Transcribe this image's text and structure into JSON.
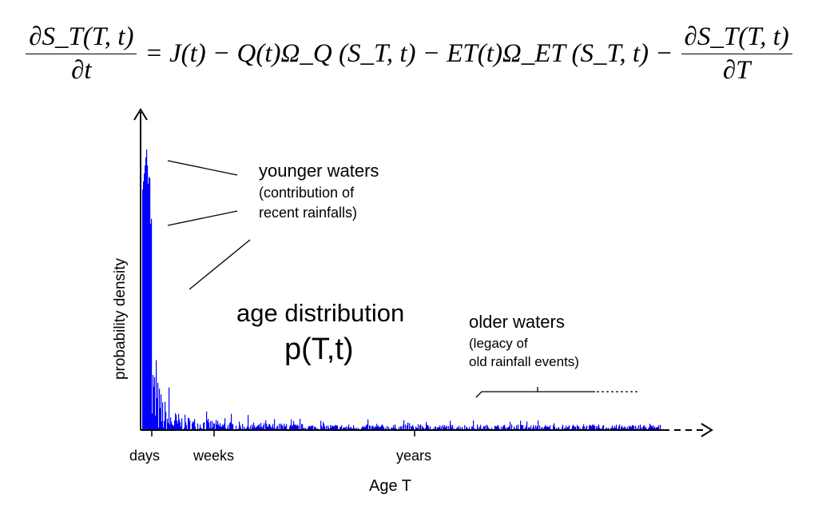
{
  "equation": {
    "lhs_numerator": "∂S_T(T, t)",
    "lhs_denominator": "∂t",
    "rhs_middle": "= J(t) − Q(t)Ω_Q (S_T, t) − ET(t)Ω_ET (S_T, t) −",
    "rhs_numerator": "∂S_T(T, t)",
    "rhs_denominator": "∂T"
  },
  "annotations": {
    "younger_title": "younger waters",
    "younger_sub1": "(contribution of",
    "younger_sub2": "recent rainfalls)",
    "dist_title": "age distribution",
    "dist_symbol": "p(T,t)",
    "older_title": "older waters",
    "older_sub1": "(legacy of",
    "older_sub2": "old rainfall events)"
  },
  "axes": {
    "ylabel": "probability density",
    "xlabel": "Age T",
    "ticks": [
      "days",
      "weeks",
      "years"
    ]
  },
  "colors": {
    "bars": "#0000ff",
    "axis": "#000000"
  }
}
